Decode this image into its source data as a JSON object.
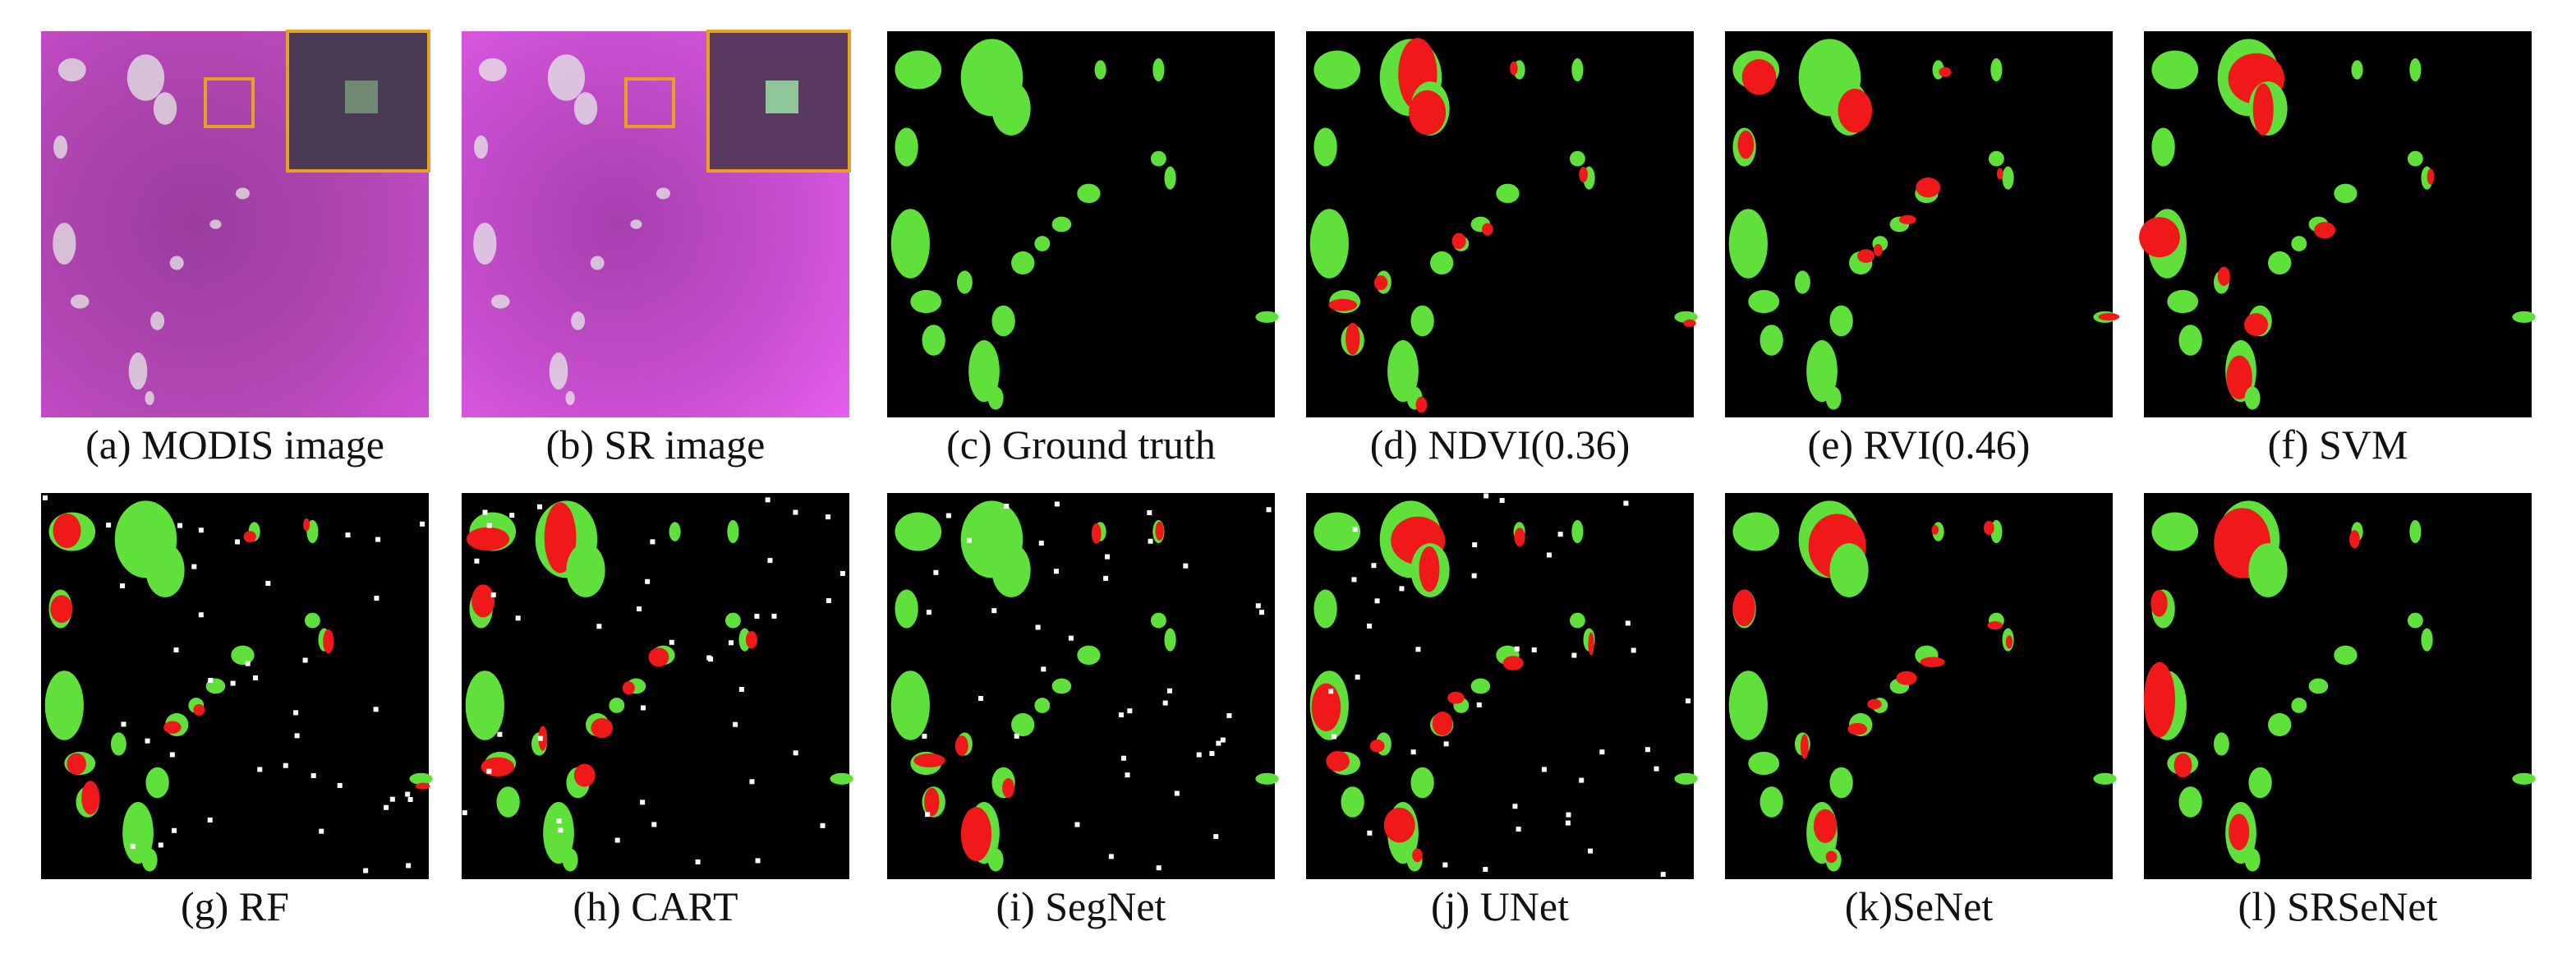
{
  "panels": [
    {
      "caption": "(a) MODIS image"
    },
    {
      "caption": "(b) SR image"
    },
    {
      "caption": "(c) Ground truth"
    },
    {
      "caption": "(d) NDVI(0.36)"
    },
    {
      "caption": "(e) RVI(0.46)"
    },
    {
      "caption": "(f) SVM"
    },
    {
      "caption": "(g) RF"
    },
    {
      "caption": "(h) CART"
    },
    {
      "caption": "(i) SegNet"
    },
    {
      "caption": "(j) UNet"
    },
    {
      "caption": "(k)SeNet"
    },
    {
      "caption": "(l) SRSeNet"
    }
  ]
}
